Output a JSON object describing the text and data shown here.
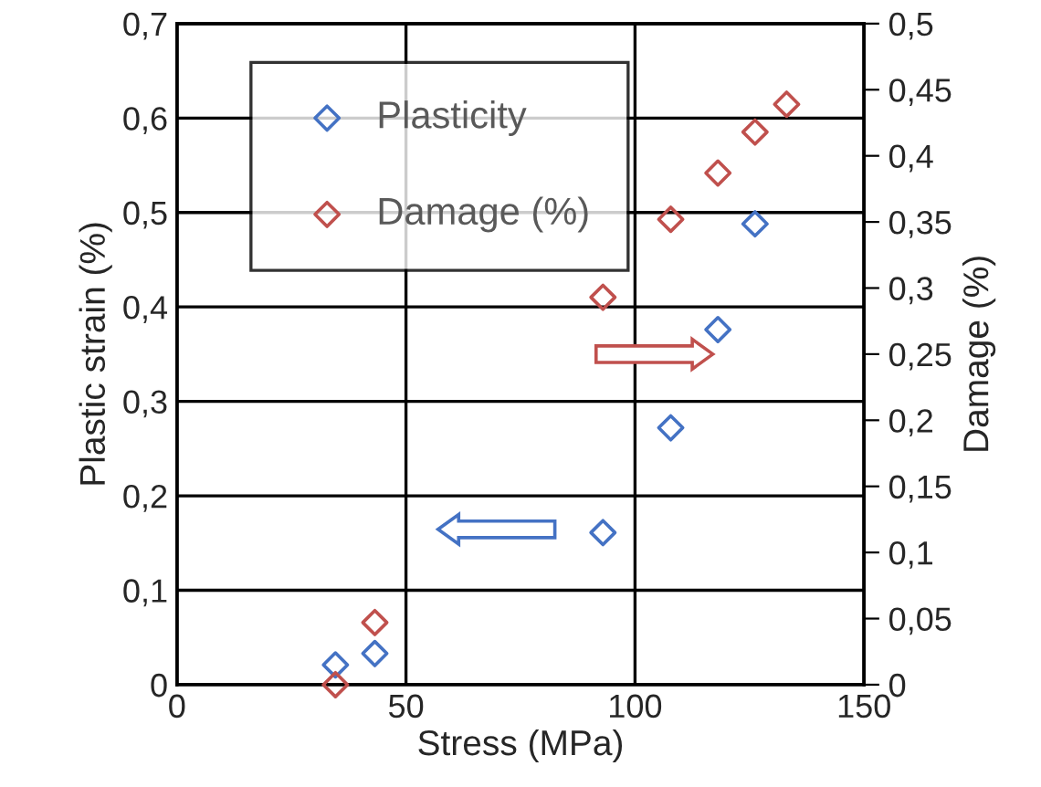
{
  "chart_data": {
    "type": "scatter",
    "xlabel": "Stress (MPa)",
    "ylabel": "Plastic strain (%)",
    "y2label": "Damage (%)",
    "marker": "diamond",
    "grid": true,
    "legend": "top left",
    "xlim": [
      0,
      150
    ],
    "xticks": [
      0,
      50,
      100,
      150
    ],
    "ylim": [
      0,
      0.7
    ],
    "yticks": [
      0,
      {
        "value": 0.1,
        "label": "0,1"
      },
      {
        "value": 0.2,
        "label": "0,2"
      },
      {
        "value": 0.3,
        "label": "0,3"
      },
      {
        "value": 0.4,
        "label": "0,4"
      },
      {
        "value": 0.5,
        "label": "0,5"
      },
      {
        "value": 0.6,
        "label": "0,6"
      },
      {
        "value": 0.7,
        "label": "0,7"
      }
    ],
    "y2lim": [
      0,
      0.5
    ],
    "y2ticks": [
      0,
      {
        "value": 0.05,
        "label": "0,05"
      },
      {
        "value": 0.1,
        "label": "0,1"
      },
      {
        "value": 0.15,
        "label": "0,15"
      },
      {
        "value": 0.2,
        "label": "0,2"
      },
      {
        "value": 0.25,
        "label": "0,25"
      },
      {
        "value": 0.3,
        "label": "0,3"
      },
      {
        "value": 0.35,
        "label": "0,35"
      },
      {
        "value": 0.4,
        "label": "0,4"
      },
      {
        "value": 0.45,
        "label": "0,45"
      },
      {
        "value": 0.5,
        "label": "0,5"
      }
    ],
    "series": [
      {
        "name": "Plasticity",
        "color": "#4472c4",
        "x": [
          34.6,
          43.2,
          93.0,
          107.8,
          118.1,
          126.2
        ],
        "values": [
          0.021,
          0.033,
          0.161,
          0.272,
          0.376,
          0.488
        ]
      },
      {
        "name": "Damage (%)",
        "color": "#c0504d",
        "axis": "y2",
        "x": [
          34.6,
          43.2,
          93.0,
          107.8,
          118.1,
          126.2,
          133.1
        ],
        "values": [
          0,
          0.047,
          0.293,
          0.352,
          0.387,
          0.418,
          0.439
        ]
      }
    ]
  }
}
